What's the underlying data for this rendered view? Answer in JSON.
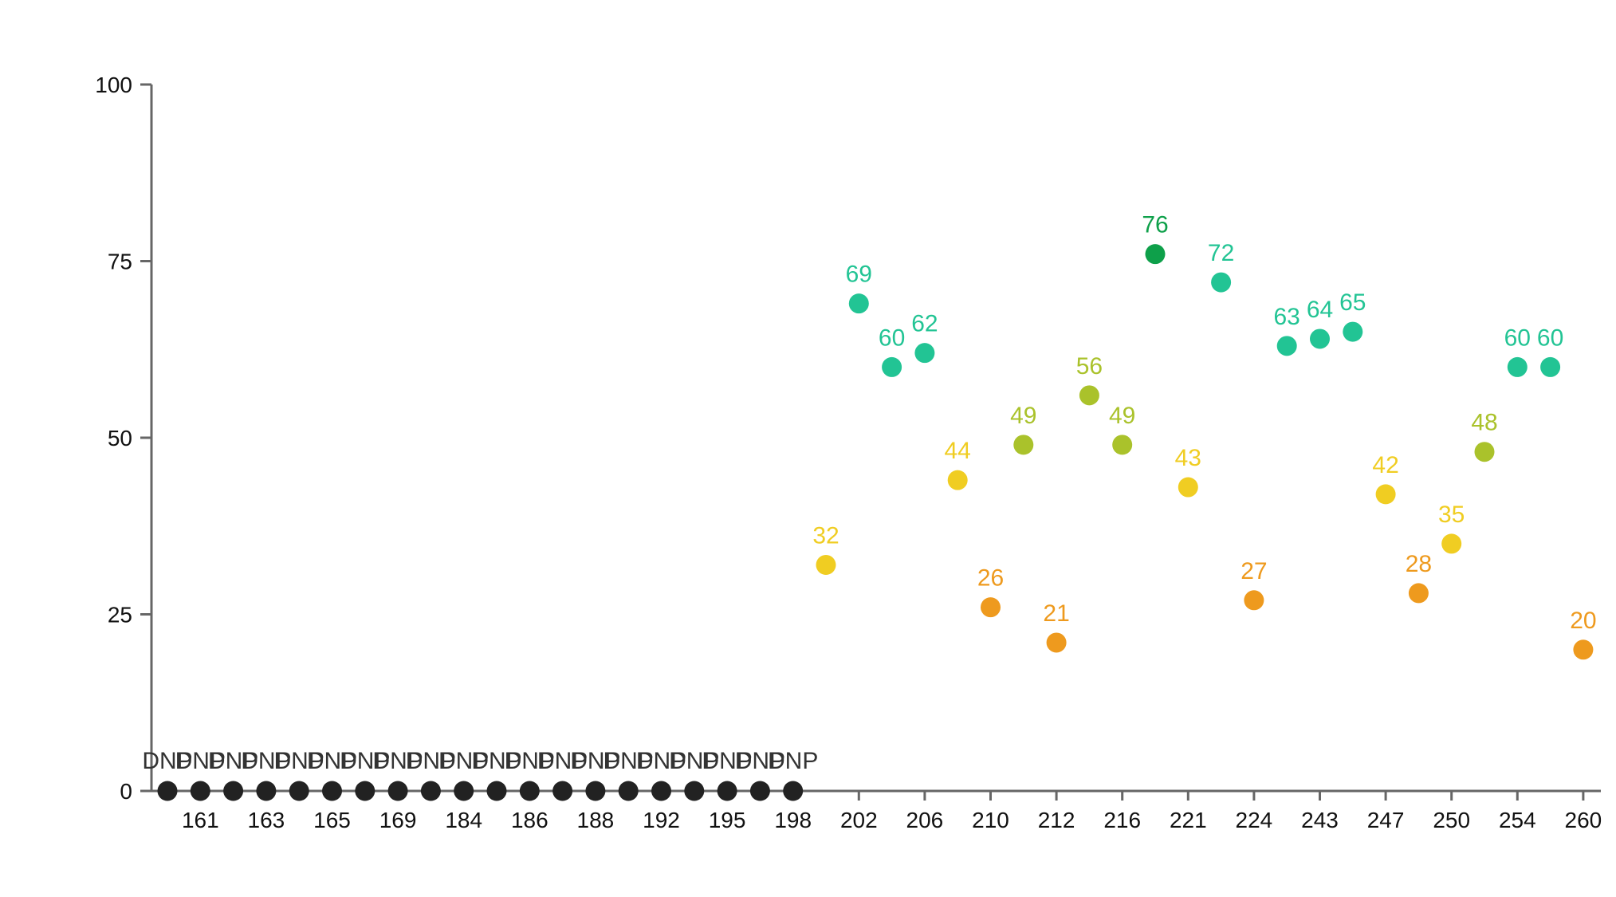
{
  "chart_data": {
    "type": "scatter",
    "title": "",
    "xlabel": "",
    "ylabel": "",
    "ylim": [
      0,
      100
    ],
    "y_ticks": [
      0,
      25,
      50,
      75,
      100
    ],
    "x_tick_labels": [
      "161",
      "163",
      "165",
      "169",
      "184",
      "186",
      "188",
      "192",
      "195",
      "198",
      "202",
      "206",
      "210",
      "212",
      "216",
      "221",
      "224",
      "243",
      "247",
      "250",
      "254",
      "260"
    ],
    "dnp_label": "DNP",
    "grid": false,
    "legend": "none",
    "colors": {
      "dnp": "#222222",
      "low": "#ee9a1e",
      "mid": "#f0cd22",
      "upper": "#aac22b",
      "high": "#22c494",
      "top": "#0ea04a"
    },
    "points": [
      {
        "x": "160",
        "y": 0,
        "dnp": true
      },
      {
        "x": "161",
        "y": 0,
        "dnp": true
      },
      {
        "x": "162",
        "y": 0,
        "dnp": true
      },
      {
        "x": "163",
        "y": 0,
        "dnp": true
      },
      {
        "x": "164",
        "y": 0,
        "dnp": true
      },
      {
        "x": "165",
        "y": 0,
        "dnp": true
      },
      {
        "x": "167",
        "y": 0,
        "dnp": true
      },
      {
        "x": "169",
        "y": 0,
        "dnp": true
      },
      {
        "x": "171",
        "y": 0,
        "dnp": true
      },
      {
        "x": "184",
        "y": 0,
        "dnp": true
      },
      {
        "x": "185",
        "y": 0,
        "dnp": true
      },
      {
        "x": "186",
        "y": 0,
        "dnp": true
      },
      {
        "x": "187",
        "y": 0,
        "dnp": true
      },
      {
        "x": "188",
        "y": 0,
        "dnp": true
      },
      {
        "x": "190",
        "y": 0,
        "dnp": true
      },
      {
        "x": "192",
        "y": 0,
        "dnp": true
      },
      {
        "x": "194",
        "y": 0,
        "dnp": true
      },
      {
        "x": "195",
        "y": 0,
        "dnp": true
      },
      {
        "x": "196",
        "y": 0,
        "dnp": true
      },
      {
        "x": "198",
        "y": 0,
        "dnp": true
      },
      {
        "x": "200",
        "y": 32,
        "label": "32"
      },
      {
        "x": "202",
        "y": 69,
        "label": "69"
      },
      {
        "x": "204",
        "y": 60,
        "label": "60"
      },
      {
        "x": "206",
        "y": 62,
        "label": "62"
      },
      {
        "x": "208",
        "y": 44,
        "label": "44"
      },
      {
        "x": "210",
        "y": 26,
        "label": "26"
      },
      {
        "x": "211",
        "y": 49,
        "label": "49"
      },
      {
        "x": "212",
        "y": 21,
        "label": "21"
      },
      {
        "x": "214",
        "y": 56,
        "label": "56"
      },
      {
        "x": "216",
        "y": 49,
        "label": "49"
      },
      {
        "x": "218",
        "y": 76,
        "label": "76"
      },
      {
        "x": "221",
        "y": 43,
        "label": "43"
      },
      {
        "x": "222",
        "y": 72,
        "label": "72"
      },
      {
        "x": "224",
        "y": 27,
        "label": "27"
      },
      {
        "x": "225",
        "y": 63,
        "label": "63"
      },
      {
        "x": "243",
        "y": 64,
        "label": "64"
      },
      {
        "x": "245",
        "y": 65,
        "label": "65"
      },
      {
        "x": "247",
        "y": 42,
        "label": "42"
      },
      {
        "x": "248",
        "y": 28,
        "label": "28"
      },
      {
        "x": "250",
        "y": 35,
        "label": "35"
      },
      {
        "x": "252",
        "y": 48,
        "label": "48"
      },
      {
        "x": "254",
        "y": 60,
        "label": "60"
      },
      {
        "x": "256",
        "y": 60,
        "label": "60"
      },
      {
        "x": "260",
        "y": 20,
        "label": "20"
      }
    ]
  }
}
